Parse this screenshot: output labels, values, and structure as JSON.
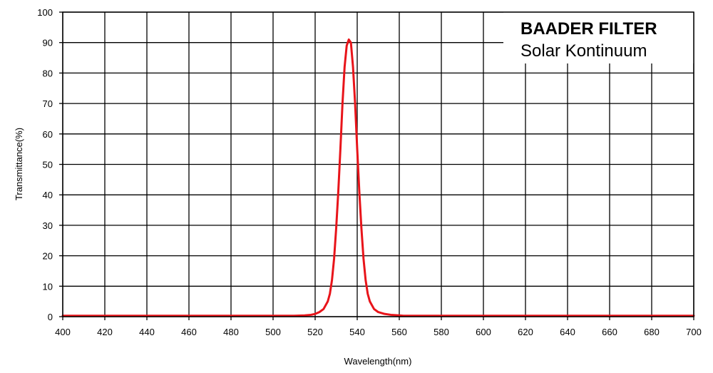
{
  "chart_data": {
    "type": "line",
    "title": "BAADER FILTER",
    "subtitle": "Solar Kontinuum",
    "xlabel": "Wavelength(nm)",
    "ylabel": "Transmittance(%)",
    "xlim": [
      400,
      700
    ],
    "ylim": [
      0,
      100
    ],
    "xticks": [
      400,
      420,
      440,
      460,
      480,
      500,
      520,
      540,
      560,
      580,
      600,
      620,
      640,
      660,
      680,
      700
    ],
    "yticks": [
      0,
      10,
      20,
      30,
      40,
      50,
      60,
      70,
      80,
      90,
      100
    ],
    "grid": true,
    "legend_position": "top-right",
    "series": [
      {
        "color": "#e8141a",
        "x": [
          400,
          500,
          510,
          515,
          518,
          520,
          522,
          524,
          526,
          527,
          528,
          529,
          530,
          531,
          532,
          533,
          534,
          535,
          536,
          537,
          538,
          539,
          540,
          541,
          542,
          543,
          544,
          545,
          546,
          548,
          550,
          553,
          556,
          560,
          562,
          570,
          600,
          650,
          700
        ],
        "y": [
          0.3,
          0.3,
          0.3,
          0.4,
          0.6,
          0.9,
          1.5,
          2.5,
          5,
          7.5,
          12,
          19,
          29,
          41,
          55,
          70,
          82,
          89,
          91,
          90,
          82,
          70,
          55,
          41,
          29,
          19,
          12,
          7.5,
          5,
          2.5,
          1.5,
          0.9,
          0.6,
          0.4,
          0.3,
          0.3,
          0.3,
          0.3,
          0.3
        ]
      }
    ]
  }
}
